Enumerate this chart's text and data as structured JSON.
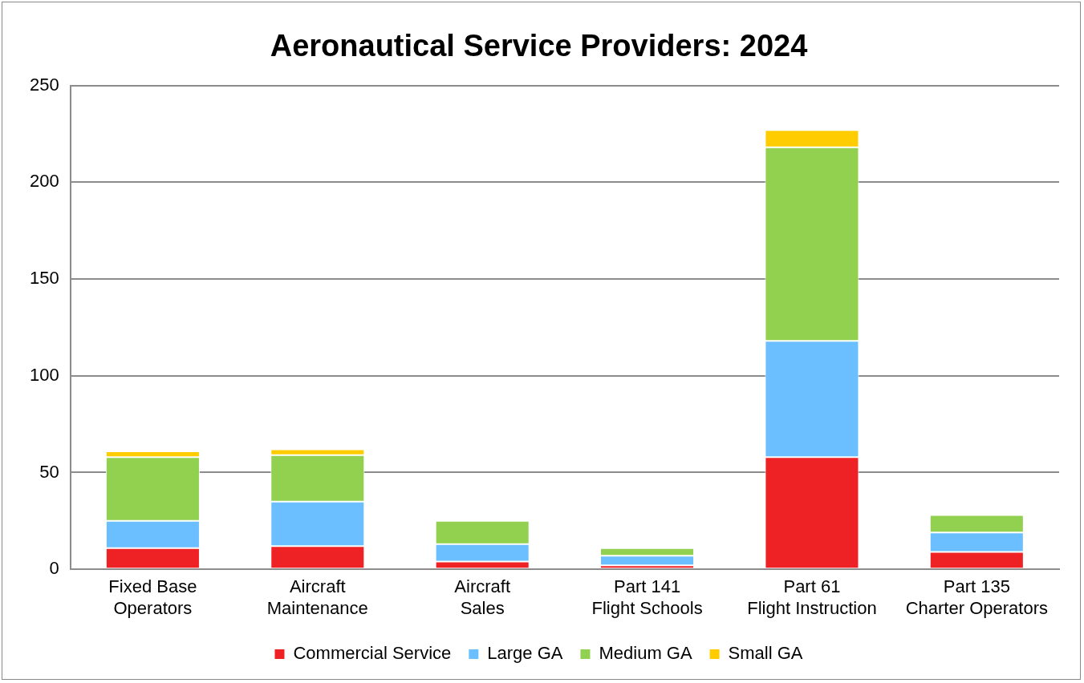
{
  "chart_data": {
    "type": "bar",
    "title": "Aeronautical Service Providers: 2024",
    "stacked": true,
    "categories": [
      "Fixed Base Operators",
      "Aircraft Maintenance",
      "Aircraft Sales",
      "Part 141 Flight Schools",
      "Part 61 Flight Instruction",
      "Part 135 Charter Operators"
    ],
    "series": [
      {
        "name": "Commercial Service",
        "color": "#ee2124",
        "values": [
          11,
          12,
          4,
          2,
          58,
          9
        ]
      },
      {
        "name": "Large GA",
        "color": "#6cbfff",
        "values": [
          14,
          23,
          9,
          5,
          60,
          10
        ]
      },
      {
        "name": "Medium GA",
        "color": "#92d050",
        "values": [
          33,
          24,
          12,
          4,
          100,
          9
        ]
      },
      {
        "name": "Small GA",
        "color": "#ffcc00",
        "values": [
          3,
          3,
          0,
          0,
          9,
          0
        ]
      }
    ],
    "ylim": [
      0,
      250
    ],
    "yticks": [
      0,
      50,
      100,
      150,
      200,
      250
    ],
    "grid": "y",
    "legend": "bottom"
  }
}
